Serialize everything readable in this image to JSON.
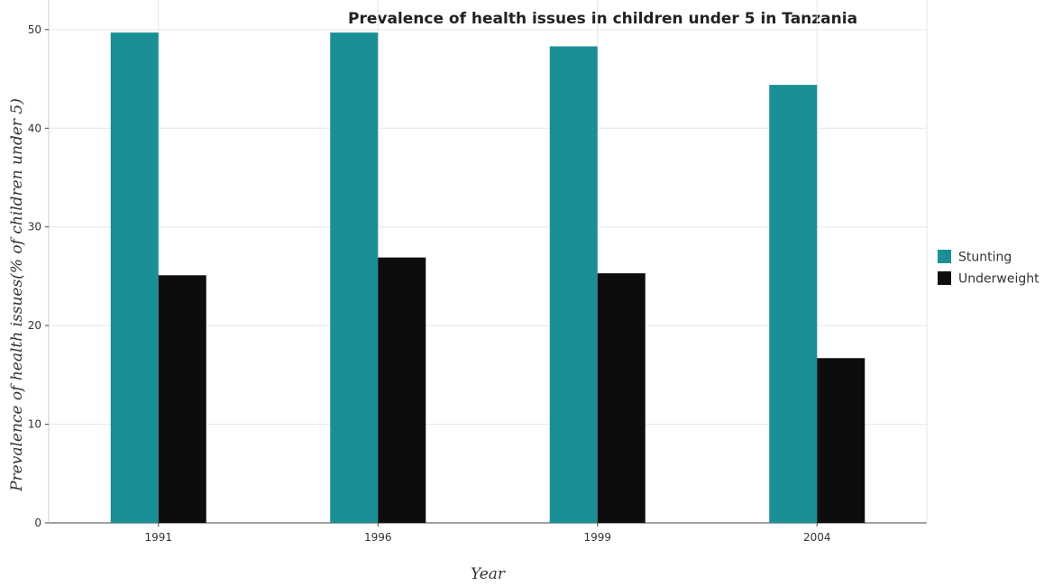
{
  "chart_data": {
    "type": "bar",
    "title": "Prevalence of health issues in children under 5 in Tanzania",
    "xlabel": "Year",
    "ylabel": "Prevalence of health issues(% of children under 5)",
    "categories": [
      "1991",
      "1996",
      "1999",
      "2004"
    ],
    "ylim": [
      0,
      53
    ],
    "yticks": [
      0,
      10,
      20,
      30,
      40,
      50
    ],
    "grid": true,
    "legend_position": "right",
    "series": [
      {
        "name": "Stunting",
        "color": "#1a8f96",
        "values": [
          49.7,
          49.7,
          48.3,
          44.4
        ]
      },
      {
        "name": "Underweight",
        "color": "#0d0d0d",
        "values": [
          25.1,
          26.9,
          25.3,
          16.7
        ]
      }
    ]
  }
}
